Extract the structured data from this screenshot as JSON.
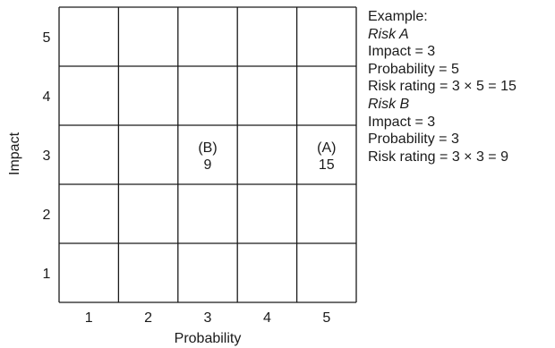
{
  "grid": {
    "ylabel": "Impact",
    "xlabel": "Probability",
    "y_ticks": [
      "5",
      "4",
      "3",
      "2",
      "1"
    ],
    "x_ticks": [
      "1",
      "2",
      "3",
      "4",
      "5"
    ]
  },
  "cells": [
    {
      "impact": 3,
      "probability": 3,
      "label": "(B)",
      "value": "9"
    },
    {
      "impact": 3,
      "probability": 5,
      "label": "(A)",
      "value": "15"
    }
  ],
  "example": {
    "heading": "Example:",
    "risk_a": {
      "title": "Risk A",
      "impact": "Impact = 3",
      "probability": "Probability = 5",
      "rating": "Risk rating = 3 × 5 = 15"
    },
    "risk_b": {
      "title": "Risk B",
      "impact": "Impact = 3",
      "probability": "Probability = 3",
      "rating": "Risk rating = 3 × 3 = 9"
    }
  }
}
